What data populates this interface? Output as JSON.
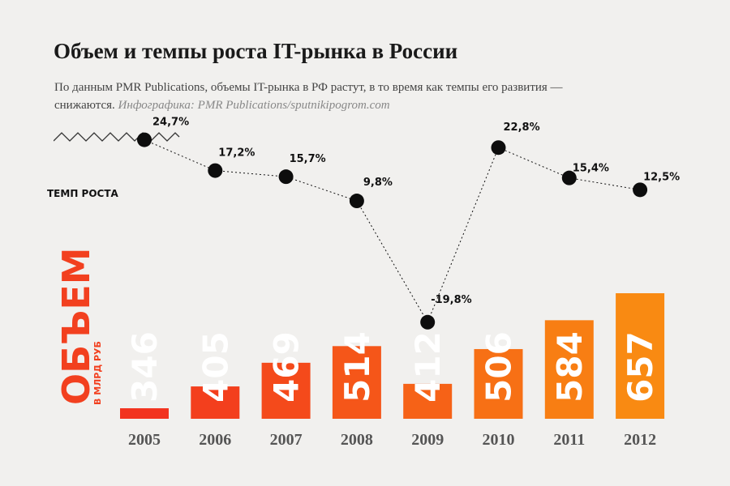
{
  "title": "Объем и темпы роста IT-рынка в России",
  "subtitle": "По данным PMR Publications, объемы IT-рынка в РФ растут, в то время как темпы его развития — снижаются.",
  "credit": "Инфографика: PMR Publications/sputnikipogrom.com",
  "chart_data": {
    "type": "bar",
    "categories": [
      "2005",
      "2006",
      "2007",
      "2008",
      "2009",
      "2010",
      "2011",
      "2012"
    ],
    "series": [
      {
        "name": "ОБЪЕМ",
        "unit": "В МЛРД РУБ",
        "type": "bar",
        "values": [
          346,
          405,
          469,
          514,
          412,
          506,
          584,
          657
        ],
        "labels": [
          "346",
          "405",
          "469",
          "514",
          "412",
          "506",
          "584",
          "657"
        ],
        "colors": [
          "#f2331f",
          "#f33f1d",
          "#f44a1b",
          "#f55619",
          "#f66217",
          "#f77015",
          "#f87e13",
          "#f98a12"
        ]
      },
      {
        "name": "ТЕМП РОСТА",
        "type": "line",
        "values": [
          24.7,
          17.2,
          15.7,
          9.8,
          -19.8,
          22.8,
          15.4,
          12.5
        ],
        "labels": [
          "24,7%",
          "17,2%",
          "15,7%",
          "9,8%",
          "-19,8%",
          "22,8%",
          "15,4%",
          "12,5%"
        ],
        "line_color": "#111111"
      }
    ]
  }
}
